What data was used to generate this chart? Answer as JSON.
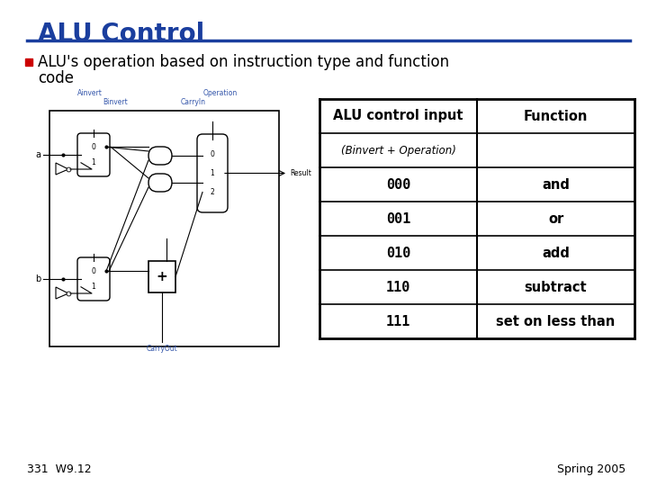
{
  "title": "ALU Control",
  "title_color": "#1A3E9E",
  "title_underline_color": "#1A3E9E",
  "bullet_text_line1": "ALU's operation based on instruction type and function",
  "bullet_text_line2": "code",
  "bullet_color": "#CC0000",
  "body_text_color": "#000000",
  "background_color": "#FFFFFF",
  "table_header_col1": "ALU control input",
  "table_header_col2": "Function",
  "table_subheader": "(Binvert + Operation)",
  "table_rows": [
    [
      "000",
      "and"
    ],
    [
      "001",
      "or"
    ],
    [
      "010",
      "add"
    ],
    [
      "110",
      "subtract"
    ],
    [
      "111",
      "set on less than"
    ]
  ],
  "footer_left": "331  W9.12",
  "footer_right": "Spring 2005",
  "footer_color": "#000000",
  "label_color": "#3355AA"
}
